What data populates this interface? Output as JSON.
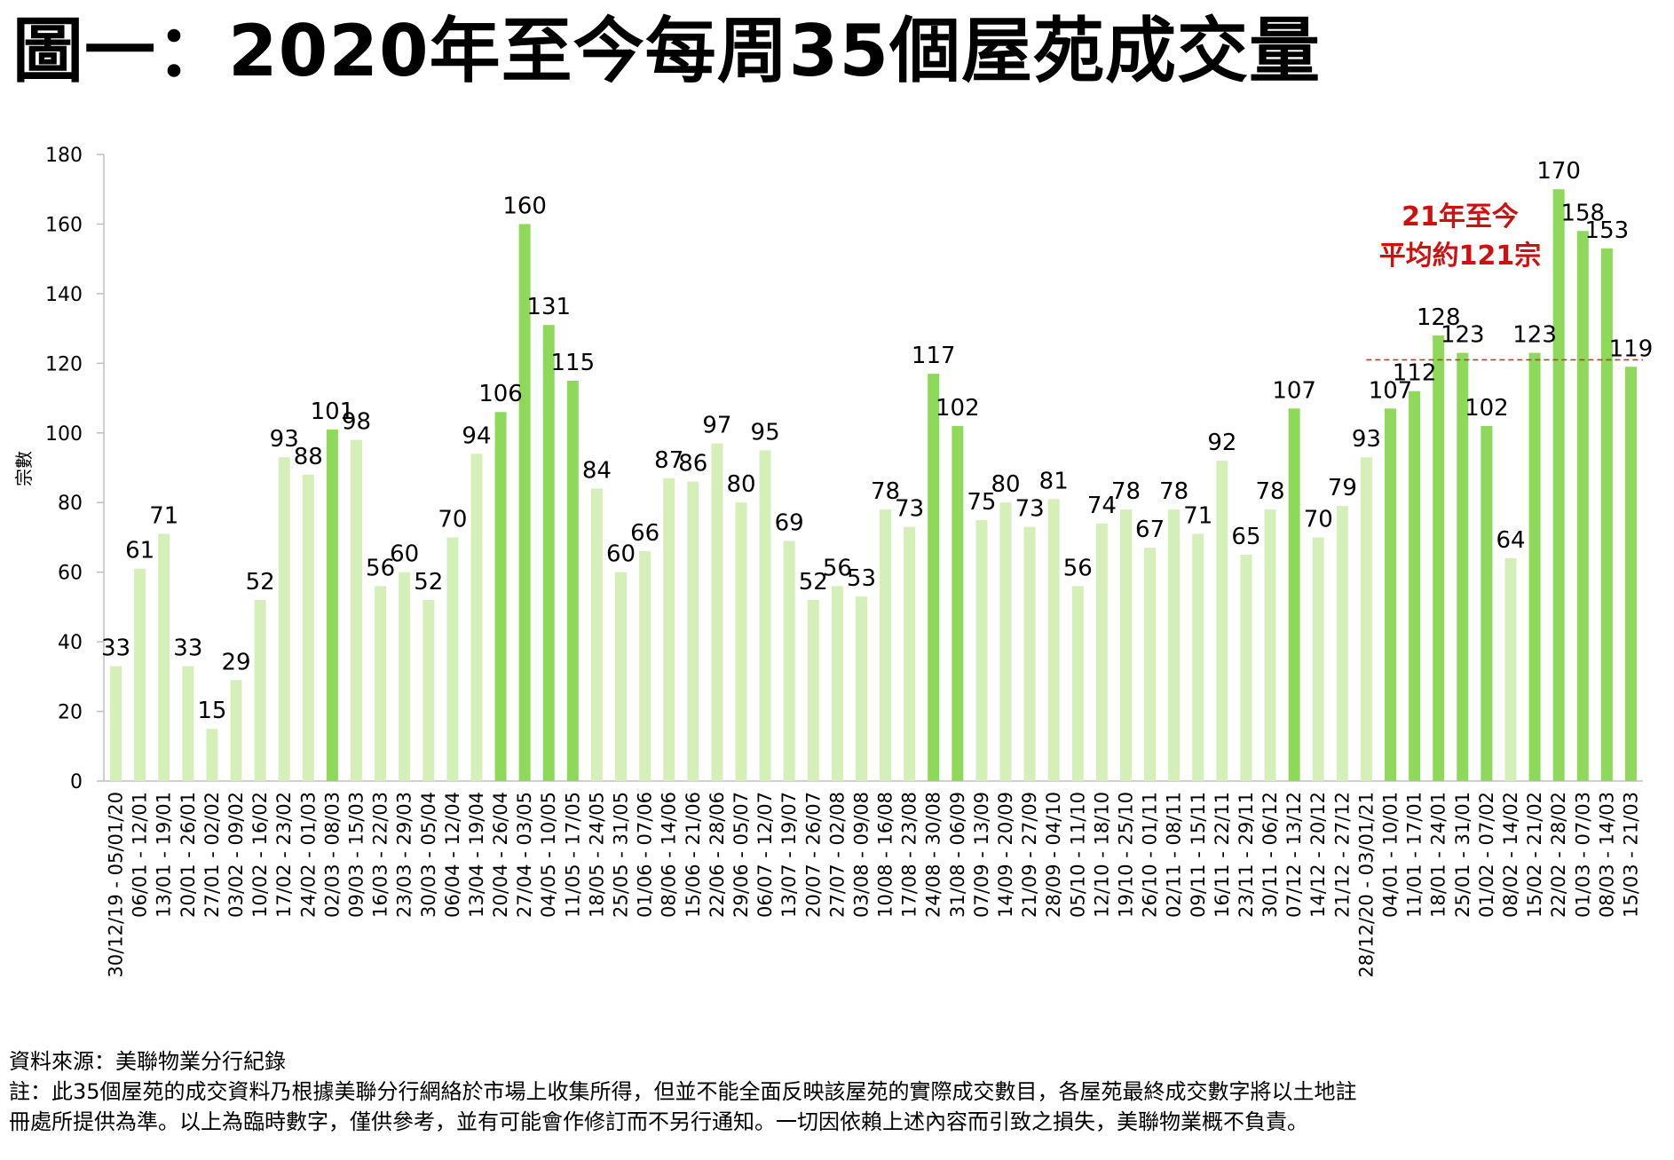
{
  "title": "圖一：2020年至今每周35個屋苑成交量",
  "footer": {
    "source": "資料來源：美聯物業分行紀錄",
    "note_line1": "註：此35個屋苑的成交資料乃根據美聯分行網絡於市場上收集所得，但並不能全面反映該屋苑的實際成交數目，各屋苑最終成交數字將以土地註",
    "note_line2": "冊處所提供為準。以上為臨時數字，僅供參考，並有可能會作修訂而不另行通知。一切因依賴上述內容而引致之損失，美聯物業概不負責。"
  },
  "chart_data": {
    "type": "bar",
    "ylabel": "宗數",
    "ylim": [
      0,
      180
    ],
    "yticks": [
      0,
      20,
      40,
      60,
      80,
      100,
      120,
      140,
      160,
      180
    ],
    "colors": {
      "light": "#d4f0b8",
      "dark": "#8fd95a",
      "avg_line": "#c0392b",
      "annotation": "#cc1111",
      "axis": "#bfbfbf"
    },
    "annotation": {
      "line1": "21年至今",
      "line2": "平均約121宗",
      "average": 121
    },
    "categories": [
      "30/12/19 - 05/01/20",
      "06/01 - 12/01",
      "13/01 - 19/01",
      "20/01 - 26/01",
      "27/01 - 02/02",
      "03/02 - 09/02",
      "10/02 - 16/02",
      "17/02 - 23/02",
      "24/02 - 01/03",
      "02/03 - 08/03",
      "09/03 - 15/03",
      "16/03 - 22/03",
      "23/03 - 29/03",
      "30/03 - 05/04",
      "06/04 - 12/04",
      "13/04 - 19/04",
      "20/04 - 26/04",
      "27/04 - 03/05",
      "04/05 - 10/05",
      "11/05 - 17/05",
      "18/05 - 24/05",
      "25/05 - 31/05",
      "01/06 - 07/06",
      "08/06 - 14/06",
      "15/06 - 21/06",
      "22/06 - 28/06",
      "29/06 - 05/07",
      "06/07 - 12/07",
      "13/07 - 19/07",
      "20/07 - 26/07",
      "27/07 - 02/08",
      "03/08 - 09/08",
      "10/08 - 16/08",
      "17/08 - 23/08",
      "24/08 - 30/08",
      "31/08 - 06/09",
      "07/09 - 13/09",
      "14/09 - 20/09",
      "21/09 - 27/09",
      "28/09 - 04/10",
      "05/10 - 11/10",
      "12/10 - 18/10",
      "19/10 - 25/10",
      "26/10 - 01/11",
      "02/11 - 08/11",
      "09/11 - 15/11",
      "16/11 - 22/11",
      "23/11 - 29/11",
      "30/11 - 06/12",
      "07/12 - 13/12",
      "14/12 - 20/12",
      "21/12 - 27/12",
      "28/12/20 - 03/01/21",
      "04/01 - 10/01",
      "11/01 - 17/01",
      "18/01 - 24/01",
      "25/01 - 31/01",
      "01/02 - 07/02",
      "08/02 - 14/02",
      "15/02 - 21/02",
      "22/02 - 28/02",
      "01/03 - 07/03",
      "08/03 - 14/03",
      "15/03 - 21/03"
    ],
    "values": [
      33,
      61,
      71,
      33,
      15,
      29,
      52,
      93,
      88,
      101,
      98,
      56,
      60,
      52,
      70,
      94,
      106,
      160,
      131,
      115,
      84,
      60,
      66,
      87,
      86,
      97,
      80,
      95,
      69,
      52,
      56,
      53,
      78,
      73,
      117,
      102,
      75,
      80,
      73,
      81,
      56,
      74,
      78,
      67,
      78,
      71,
      92,
      65,
      78,
      107,
      70,
      79,
      93,
      107,
      112,
      128,
      123,
      102,
      64,
      123,
      170,
      158,
      153,
      119
    ],
    "highlight": [
      false,
      false,
      false,
      false,
      false,
      false,
      false,
      false,
      false,
      true,
      false,
      false,
      false,
      false,
      false,
      false,
      true,
      true,
      true,
      true,
      false,
      false,
      false,
      false,
      false,
      false,
      false,
      false,
      false,
      false,
      false,
      false,
      false,
      false,
      true,
      true,
      false,
      false,
      false,
      false,
      false,
      false,
      false,
      false,
      false,
      false,
      false,
      false,
      false,
      true,
      false,
      false,
      false,
      true,
      true,
      true,
      true,
      true,
      false,
      true,
      true,
      true,
      true,
      true
    ]
  }
}
